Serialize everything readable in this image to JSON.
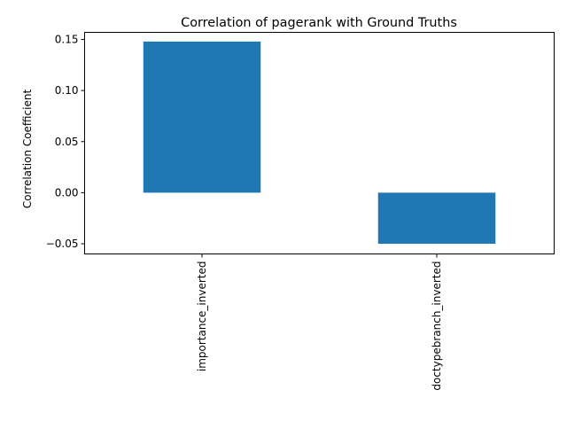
{
  "chart_data": {
    "type": "bar",
    "title": "Correlation of pagerank with Ground Truths",
    "xlabel": "",
    "ylabel": "Correlation Coefficient",
    "categories": [
      "importance_inverted",
      "doctypebranch_inverted"
    ],
    "values": [
      0.148,
      -0.05
    ],
    "ylim": [
      -0.06,
      0.157
    ],
    "yticks": [
      "−0.05",
      "0.00",
      "0.05",
      "0.10",
      "0.15"
    ],
    "ytick_values": [
      -0.05,
      0.0,
      0.05,
      0.1,
      0.15
    ],
    "bar_color": "#1f77b4",
    "grid": false,
    "legend": "none"
  }
}
